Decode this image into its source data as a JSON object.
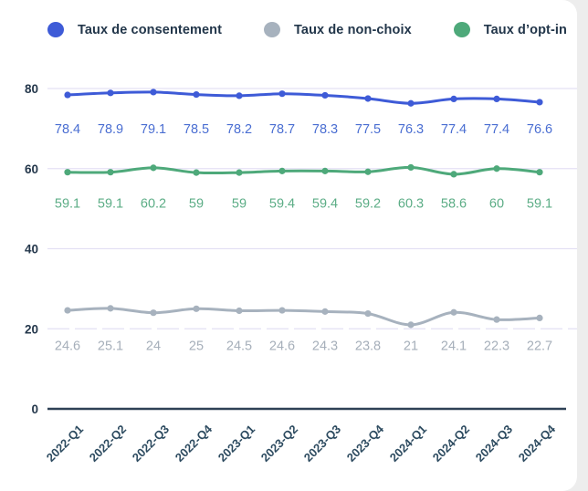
{
  "page": {
    "background_color": "#ededed",
    "card_color": "#ffffff"
  },
  "axis": {
    "y_tick_labels": [
      "0",
      "20",
      "40",
      "60",
      "80"
    ],
    "tick_label_color": "#25384c",
    "x_tick_label_color": "#2d4b60",
    "grid_color": "#e4e0f4",
    "axis_line_color": "#2e4156"
  },
  "chart_data": {
    "type": "line",
    "title": "",
    "xlabel": "",
    "ylabel": "",
    "x": [
      "2022-Q1",
      "2022-Q2",
      "2022-Q3",
      "2022-Q4",
      "2023-Q1",
      "2023-Q2",
      "2023-Q3",
      "2023-Q4",
      "2024-Q1",
      "2024-Q2",
      "2024-Q3",
      "2024-Q4"
    ],
    "y_ticks": [
      0,
      20,
      40,
      60,
      80
    ],
    "ylim": [
      0,
      91
    ],
    "grid": true,
    "legend_position": "top",
    "data_labels": true,
    "x_tick_rotation": -45,
    "series": [
      {
        "name": "Taux de consentement",
        "color": "#3e5bd7",
        "label_color": "#4a6ed2",
        "values": [
          78.4,
          78.9,
          79.1,
          78.5,
          78.2,
          78.7,
          78.3,
          77.5,
          76.3,
          77.4,
          77.4,
          76.6
        ]
      },
      {
        "name": "Taux de non-choix",
        "color": "#a7b2be",
        "label_color": "#a6afba",
        "values": [
          24.6,
          25.1,
          24,
          25,
          24.5,
          24.6,
          24.3,
          23.8,
          21,
          24.1,
          22.3,
          22.7
        ]
      },
      {
        "name": "Taux d’opt-in",
        "color": "#4ea97a",
        "label_color": "#5cad86",
        "values": [
          59.1,
          59.1,
          60.2,
          59,
          59,
          59.4,
          59.4,
          59.2,
          60.3,
          58.6,
          60,
          59.1
        ]
      }
    ]
  }
}
